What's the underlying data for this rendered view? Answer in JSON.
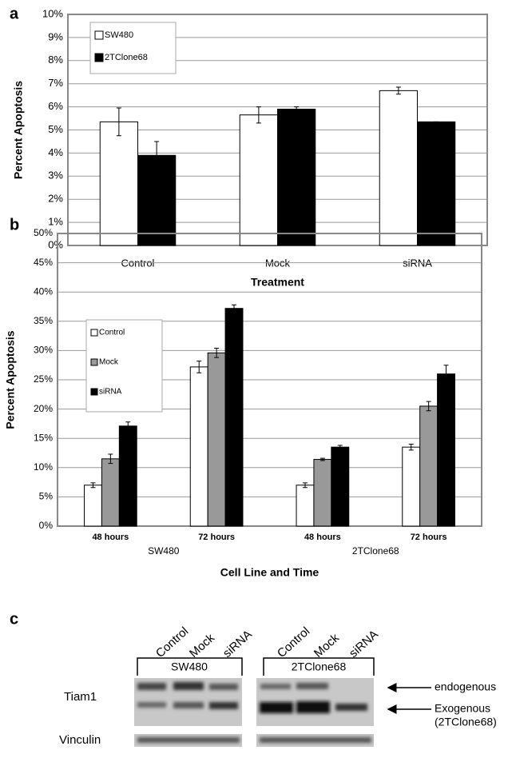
{
  "chart_data": [
    {
      "type": "bar",
      "panel_label": "a",
      "y_label": "Percent Apoptosis",
      "x_label": "Treatment",
      "categories": [
        "Control",
        "Mock",
        "siRNA"
      ],
      "series": [
        {
          "name": "SW480",
          "color": "#ffffff",
          "values": [
            5.35,
            5.65,
            6.7
          ],
          "errors": [
            0.6,
            0.35,
            0.15
          ]
        },
        {
          "name": "2TClone68",
          "color": "#000000",
          "values": [
            3.9,
            5.9,
            5.35
          ],
          "errors": [
            0.6,
            0.1,
            0.0
          ]
        }
      ],
      "ylim": [
        0,
        10
      ],
      "yticks": [
        {
          "value": 0,
          "label": "0%"
        },
        {
          "value": 1,
          "label": "1%"
        },
        {
          "value": 2,
          "label": "2%"
        },
        {
          "value": 3,
          "label": "3%"
        },
        {
          "value": 4,
          "label": "4%"
        },
        {
          "value": 5,
          "label": "5%"
        },
        {
          "value": 6,
          "label": "6%"
        },
        {
          "value": 7,
          "label": "7%"
        },
        {
          "value": 8,
          "label": "8%"
        },
        {
          "value": 9,
          "label": "9%"
        },
        {
          "value": 10,
          "label": "10%"
        }
      ],
      "grid": true,
      "legend": "upper left"
    },
    {
      "type": "bar",
      "panel_label": "b",
      "y_label": "Percent Apoptosis",
      "x_label": "Cell Line and Time",
      "categories": [
        "48 hours",
        "72 hours",
        "48 hours",
        "72 hours"
      ],
      "groups": [
        "SW480",
        "2TClone68"
      ],
      "series": [
        {
          "name": "Control",
          "color": "#ffffff",
          "values": [
            7,
            27.2,
            7,
            13.5
          ],
          "errors": [
            0.4,
            1,
            0.4,
            0.5
          ]
        },
        {
          "name": "Mock",
          "color": "#999999",
          "values": [
            11.5,
            29.6,
            11.4,
            20.5
          ],
          "errors": [
            0.8,
            0.8,
            0.2,
            0.8
          ]
        },
        {
          "name": "siRNA",
          "color": "#000000",
          "values": [
            17.1,
            37.2,
            13.5,
            26
          ],
          "errors": [
            0.7,
            0.6,
            0.3,
            1.5
          ]
        }
      ],
      "ylim": [
        0,
        50
      ],
      "yticks": [
        {
          "value": 0,
          "label": "0%"
        },
        {
          "value": 5,
          "label": "5%"
        },
        {
          "value": 10,
          "label": "10%"
        },
        {
          "value": 15,
          "label": "15%"
        },
        {
          "value": 20,
          "label": "20%"
        },
        {
          "value": 25,
          "label": "25%"
        },
        {
          "value": 30,
          "label": "30%"
        },
        {
          "value": 35,
          "label": "35%"
        },
        {
          "value": 40,
          "label": "40%"
        },
        {
          "value": 45,
          "label": "45%"
        },
        {
          "value": 50,
          "label": "50%"
        }
      ],
      "grid": true,
      "legend": "upper left"
    }
  ],
  "panel_c": {
    "label": "c",
    "lanes": [
      "Control",
      "Mock",
      "siRNA",
      "Control",
      "Mock",
      "siRNA"
    ],
    "groups": [
      "SW480",
      "2TClone68"
    ],
    "rows": [
      "Tiam1",
      "Vinculin"
    ],
    "bands": [
      "endogenous",
      "Exogenous",
      "(2TClone68)"
    ]
  }
}
